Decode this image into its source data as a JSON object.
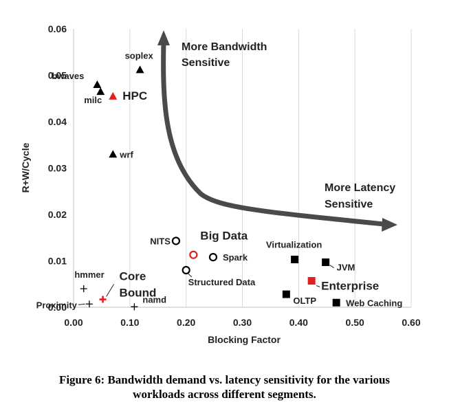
{
  "chart_data": {
    "type": "scatter",
    "title": "",
    "xlabel": "Blocking Factor",
    "ylabel": "R+W/Cycle",
    "xlim": [
      0,
      0.6
    ],
    "ylim": [
      0,
      0.06
    ],
    "x_ticks": [
      "0.00",
      "0.10",
      "0.20",
      "0.30",
      "0.40",
      "0.50",
      "0.60"
    ],
    "y_ticks": [
      "0.00",
      "0.01",
      "0.02",
      "0.03",
      "0.04",
      "0.05",
      "0.06"
    ],
    "grid": "vertical",
    "series": [
      {
        "name": "HPC",
        "marker": "triangle",
        "color": "#000000",
        "centroid_color": "#e02020",
        "points": [
          {
            "label": "bwaves",
            "x": 0.042,
            "y": 0.048
          },
          {
            "label": "milc",
            "x": 0.048,
            "y": 0.0465
          },
          {
            "label": "soplex",
            "x": 0.118,
            "y": 0.0512
          },
          {
            "label": "wrf",
            "x": 0.07,
            "y": 0.033
          }
        ],
        "centroid": {
          "x": 0.07,
          "y": 0.0455
        }
      },
      {
        "name": "Big Data",
        "marker": "circle",
        "color": "#000000",
        "centroid_color": "#e02020",
        "points": [
          {
            "label": "NITS",
            "x": 0.182,
            "y": 0.0143
          },
          {
            "label": "Spark",
            "x": 0.248,
            "y": 0.0108
          },
          {
            "label": "Structured Data",
            "x": 0.2,
            "y": 0.008
          }
        ],
        "centroid": {
          "x": 0.213,
          "y": 0.0113
        }
      },
      {
        "name": "Enterprise",
        "marker": "square",
        "color": "#000000",
        "centroid_color": "#e02020",
        "points": [
          {
            "label": "Virtualization",
            "x": 0.393,
            "y": 0.0103
          },
          {
            "label": "JVM",
            "x": 0.448,
            "y": 0.0097
          },
          {
            "label": "OLTP",
            "x": 0.378,
            "y": 0.0028
          },
          {
            "label": "Web Caching",
            "x": 0.467,
            "y": 0.001
          }
        ],
        "centroid": {
          "x": 0.423,
          "y": 0.0057
        }
      },
      {
        "name": "Core Bound",
        "marker": "plus",
        "color": "#000000",
        "centroid_color": "#e02020",
        "points": [
          {
            "label": "hmmer",
            "x": 0.018,
            "y": 0.004
          },
          {
            "label": "Proximity",
            "x": 0.028,
            "y": 0.0007
          },
          {
            "label": "namd",
            "x": 0.108,
            "y": 0.0001
          }
        ],
        "centroid": {
          "x": 0.052,
          "y": 0.0017
        }
      }
    ],
    "annotations": {
      "bandwidth": [
        "More Bandwidth",
        "Sensitive"
      ],
      "latency": [
        "More Latency",
        "Sensitive"
      ]
    }
  },
  "caption": {
    "line1": "Figure 6: Bandwidth demand vs. latency sensitivity for the various",
    "line2": "workloads across different segments."
  }
}
